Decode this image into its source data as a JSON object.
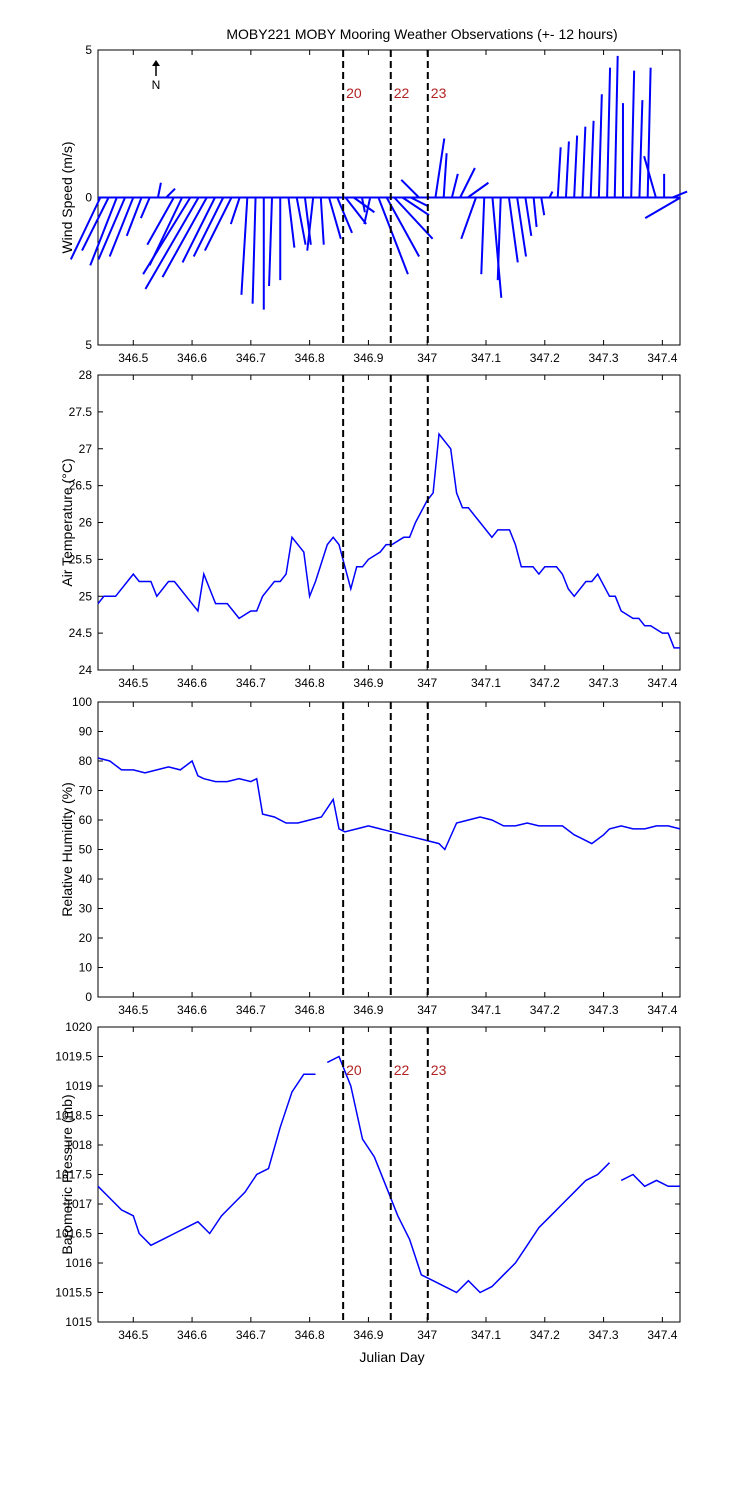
{
  "title": "MOBY221 MOBY Mooring Weather Observations (+- 12 hours)",
  "xlabel": "Julian Day",
  "north_label": "N",
  "colors": {
    "line": "#0000ff",
    "event": "#b22222",
    "axis": "#000000"
  },
  "event_lines": [
    {
      "x": 346.857,
      "label": "20"
    },
    {
      "x": 346.938,
      "label": "22"
    },
    {
      "x": 347.001,
      "label": "23"
    }
  ],
  "chart_data": [
    {
      "type": "line",
      "name": "wind",
      "ylabel": "Wind Speed (m/s)",
      "xlim": [
        346.44,
        347.43
      ],
      "ylim": [
        -5,
        5
      ],
      "x_ticks": [
        "346.5",
        "346.6",
        "346.7",
        "346.8",
        "346.9",
        "347",
        "347.1",
        "347.2",
        "347.3",
        "347.4"
      ],
      "y_ticks": [
        "5",
        "0",
        "5"
      ],
      "event_labels": true,
      "vectors": [
        [
          346.444,
          -1.0,
          -2.1
        ],
        [
          346.458,
          -0.9,
          -1.8
        ],
        [
          346.472,
          -0.9,
          -2.3
        ],
        [
          346.486,
          -0.9,
          -2.1
        ],
        [
          346.5,
          -0.8,
          -2.0
        ],
        [
          346.514,
          -0.5,
          -1.3
        ],
        [
          346.528,
          -0.3,
          -0.7
        ],
        [
          346.542,
          0.1,
          0.5
        ],
        [
          346.556,
          0.3,
          0.3
        ],
        [
          346.569,
          -0.9,
          -1.6
        ],
        [
          346.583,
          -1.1,
          -2.3
        ],
        [
          346.597,
          -1.6,
          -2.6
        ],
        [
          346.611,
          -1.8,
          -3.1
        ],
        [
          346.625,
          -1.5,
          -2.7
        ],
        [
          346.639,
          -1.1,
          -2.2
        ],
        [
          346.653,
          -1.0,
          -2.0
        ],
        [
          346.667,
          -0.9,
          -1.8
        ],
        [
          346.681,
          -0.3,
          -0.9
        ],
        [
          346.694,
          -0.2,
          -3.3
        ],
        [
          346.708,
          -0.1,
          -3.6
        ],
        [
          346.722,
          0.0,
          -3.8
        ],
        [
          346.736,
          -0.1,
          -3.0
        ],
        [
          346.75,
          0.0,
          -2.8
        ],
        [
          346.764,
          0.2,
          -1.7
        ],
        [
          346.778,
          0.3,
          -1.6
        ],
        [
          346.792,
          0.2,
          -1.6
        ],
        [
          346.806,
          -0.2,
          -1.8
        ],
        [
          346.819,
          0.1,
          -1.6
        ],
        [
          346.833,
          0.4,
          -1.4
        ],
        [
          346.847,
          0.5,
          -1.2
        ],
        [
          346.861,
          0.7,
          -0.9
        ],
        [
          346.875,
          0.7,
          -0.5
        ],
        [
          346.889,
          0.1,
          -0.5
        ],
        [
          346.903,
          -0.2,
          -0.9
        ],
        [
          346.917,
          1.0,
          -2.6
        ],
        [
          346.931,
          1.1,
          -2.0
        ],
        [
          346.944,
          1.3,
          -1.4
        ],
        [
          346.958,
          0.9,
          -0.6
        ],
        [
          346.972,
          0.6,
          -0.3
        ],
        [
          346.986,
          -0.6,
          0.6
        ],
        [
          347.0,
          0.0,
          0.0
        ],
        [
          347.014,
          0.3,
          2.0
        ],
        [
          347.028,
          0.1,
          1.5
        ],
        [
          347.042,
          0.2,
          0.8
        ],
        [
          347.056,
          0.5,
          1.0
        ],
        [
          347.069,
          0.7,
          0.5
        ],
        [
          347.083,
          -0.5,
          -1.4
        ],
        [
          347.097,
          -0.1,
          -2.6
        ],
        [
          347.111,
          0.3,
          -3.4
        ],
        [
          347.125,
          -0.1,
          -2.8
        ],
        [
          347.139,
          0.3,
          -2.2
        ],
        [
          347.153,
          0.3,
          -2.0
        ],
        [
          347.167,
          0.2,
          -1.3
        ],
        [
          347.181,
          0.1,
          -1.0
        ],
        [
          347.194,
          0.1,
          -0.6
        ],
        [
          347.208,
          0.1,
          0.2
        ],
        [
          347.222,
          0.1,
          1.7
        ],
        [
          347.236,
          0.1,
          1.9
        ],
        [
          347.25,
          0.1,
          2.1
        ],
        [
          347.264,
          0.1,
          2.4
        ],
        [
          347.278,
          0.1,
          2.6
        ],
        [
          347.292,
          0.1,
          3.5
        ],
        [
          347.306,
          0.1,
          4.4
        ],
        [
          347.319,
          0.1,
          4.8
        ],
        [
          347.333,
          0.0,
          3.2
        ],
        [
          347.347,
          0.1,
          4.3
        ],
        [
          347.361,
          0.1,
          3.3
        ],
        [
          347.375,
          0.1,
          4.4
        ],
        [
          347.389,
          -0.4,
          1.4
        ],
        [
          347.403,
          0.0,
          0.8
        ],
        [
          347.417,
          0.5,
          0.2
        ],
        [
          347.431,
          -1.2,
          -0.7
        ]
      ]
    },
    {
      "type": "line",
      "name": "air-temperature",
      "ylabel": "Air Temperature (°C)",
      "xlim": [
        346.44,
        347.43
      ],
      "ylim": [
        24,
        28
      ],
      "x_ticks": [
        "346.5",
        "346.6",
        "346.7",
        "346.8",
        "346.9",
        "347",
        "347.1",
        "347.2",
        "347.3",
        "347.4"
      ],
      "y_ticks": [
        "24",
        "24.5",
        "25",
        "25.5",
        "26",
        "26.5",
        "27",
        "27.5",
        "28"
      ],
      "event_labels": false,
      "x": [
        346.44,
        346.45,
        346.47,
        346.49,
        346.5,
        346.51,
        346.53,
        346.54,
        346.56,
        346.57,
        346.58,
        346.59,
        346.61,
        346.62,
        346.63,
        346.64,
        346.66,
        346.67,
        346.68,
        346.7,
        346.71,
        346.72,
        346.74,
        346.75,
        346.76,
        346.77,
        346.79,
        346.8,
        346.81,
        346.83,
        346.84,
        346.85,
        346.87,
        346.88,
        346.89,
        346.9,
        346.92,
        346.93,
        346.94,
        346.96,
        346.97,
        346.98,
        347.0,
        347.01,
        347.02,
        347.04,
        347.05,
        347.06,
        347.07,
        347.09,
        347.1,
        347.11,
        347.12,
        347.14,
        347.15,
        347.16,
        347.18,
        347.19,
        347.2,
        347.22,
        347.23,
        347.24,
        347.25,
        347.27,
        347.28,
        347.29,
        347.31,
        347.32,
        347.33,
        347.35,
        347.36,
        347.37,
        347.38,
        347.4,
        347.41,
        347.42,
        347.43
      ],
      "y": [
        24.9,
        25.0,
        25.0,
        25.2,
        25.3,
        25.2,
        25.2,
        25.0,
        25.2,
        25.2,
        25.1,
        25.0,
        24.8,
        25.3,
        25.1,
        24.9,
        24.9,
        24.8,
        24.7,
        24.8,
        24.8,
        25.0,
        25.2,
        25.2,
        25.3,
        25.8,
        25.6,
        25.0,
        25.2,
        25.7,
        25.8,
        25.7,
        25.1,
        25.4,
        25.4,
        25.5,
        25.6,
        25.7,
        25.7,
        25.8,
        25.8,
        26.0,
        26.3,
        26.4,
        27.2,
        27.0,
        26.4,
        26.2,
        26.2,
        26.0,
        25.9,
        25.8,
        25.9,
        25.9,
        25.7,
        25.4,
        25.4,
        25.3,
        25.4,
        25.4,
        25.3,
        25.1,
        25.0,
        25.2,
        25.2,
        25.3,
        25.0,
        25.0,
        24.8,
        24.7,
        24.7,
        24.6,
        24.6,
        24.5,
        24.5,
        24.3,
        24.3
      ]
    },
    {
      "type": "line",
      "name": "relative-humidity",
      "ylabel": "Relative Humidity (%)",
      "xlim": [
        346.44,
        347.43
      ],
      "ylim": [
        0,
        100
      ],
      "x_ticks": [
        "346.5",
        "346.6",
        "346.7",
        "346.8",
        "346.9",
        "347",
        "347.1",
        "347.2",
        "347.3",
        "347.4"
      ],
      "y_ticks": [
        "0",
        "10",
        "20",
        "30",
        "40",
        "50",
        "60",
        "70",
        "80",
        "90",
        "100"
      ],
      "event_labels": false,
      "x": [
        346.44,
        346.46,
        346.48,
        346.5,
        346.52,
        346.54,
        346.56,
        346.58,
        346.6,
        346.61,
        346.62,
        346.64,
        346.66,
        346.68,
        346.7,
        346.71,
        346.72,
        346.74,
        346.76,
        346.78,
        346.8,
        346.82,
        346.84,
        346.85,
        346.86,
        346.88,
        346.9,
        346.92,
        346.94,
        346.96,
        346.98,
        347.0,
        347.02,
        347.03,
        347.05,
        347.07,
        347.09,
        347.11,
        347.13,
        347.15,
        347.17,
        347.19,
        347.21,
        347.23,
        347.25,
        347.26,
        347.28,
        347.3,
        347.31,
        347.33,
        347.35,
        347.37,
        347.39,
        347.41,
        347.43
      ],
      "y": [
        81,
        80,
        77,
        77,
        76,
        77,
        78,
        77,
        80,
        75,
        74,
        73,
        73,
        74,
        73,
        74,
        62,
        61,
        59,
        59,
        60,
        61,
        67,
        57,
        56,
        57,
        58,
        57,
        56,
        55,
        54,
        53,
        52,
        50,
        59,
        60,
        61,
        60,
        58,
        58,
        59,
        58,
        58,
        58,
        55,
        54,
        52,
        55,
        57,
        58,
        57,
        57,
        58,
        58,
        57
      ]
    },
    {
      "type": "line",
      "name": "barometric-pressure",
      "ylabel": "Barometric Pressure (mb)",
      "xlim": [
        346.44,
        347.43
      ],
      "ylim": [
        1015,
        1020
      ],
      "x_ticks": [
        "346.5",
        "346.6",
        "346.7",
        "346.8",
        "346.9",
        "347",
        "347.1",
        "347.2",
        "347.3",
        "347.4"
      ],
      "y_ticks": [
        "1015",
        "1015.5",
        "1016",
        "1016.5",
        "1017",
        "1017.5",
        "1018",
        "1018.5",
        "1019",
        "1019.5",
        "1020"
      ],
      "event_labels": true,
      "segments": [
        {
          "x": [
            346.44,
            346.46,
            346.48,
            346.5,
            346.51,
            346.53,
            346.55,
            346.57,
            346.59,
            346.61,
            346.63,
            346.65,
            346.67,
            346.69,
            346.71,
            346.73,
            346.75,
            346.77,
            346.79,
            346.81
          ],
          "y": [
            1017.3,
            1017.1,
            1016.9,
            1016.8,
            1016.5,
            1016.3,
            1016.4,
            1016.5,
            1016.6,
            1016.7,
            1016.5,
            1016.8,
            1017.0,
            1017.2,
            1017.5,
            1017.6,
            1018.3,
            1018.9,
            1019.2,
            1019.2
          ]
        },
        {
          "x": [
            346.83,
            346.85,
            346.87,
            346.89,
            346.91,
            346.93,
            346.95,
            346.97,
            346.99,
            347.01,
            347.03,
            347.05,
            347.07,
            347.09,
            347.11,
            347.13,
            347.15,
            347.17,
            347.19,
            347.21,
            347.23,
            347.25,
            347.27,
            347.29,
            347.31
          ],
          "y": [
            1019.4,
            1019.5,
            1019.0,
            1018.1,
            1017.8,
            1017.3,
            1016.8,
            1016.4,
            1015.8,
            1015.7,
            1015.6,
            1015.5,
            1015.7,
            1015.5,
            1015.6,
            1015.8,
            1016.0,
            1016.3,
            1016.6,
            1016.8,
            1017.0,
            1017.2,
            1017.4,
            1017.5,
            1017.7
          ]
        },
        {
          "x": [
            347.33,
            347.35,
            347.37,
            347.39,
            347.41,
            347.43
          ],
          "y": [
            1017.4,
            1017.5,
            1017.3,
            1017.4,
            1017.3,
            1017.3
          ]
        }
      ]
    }
  ]
}
